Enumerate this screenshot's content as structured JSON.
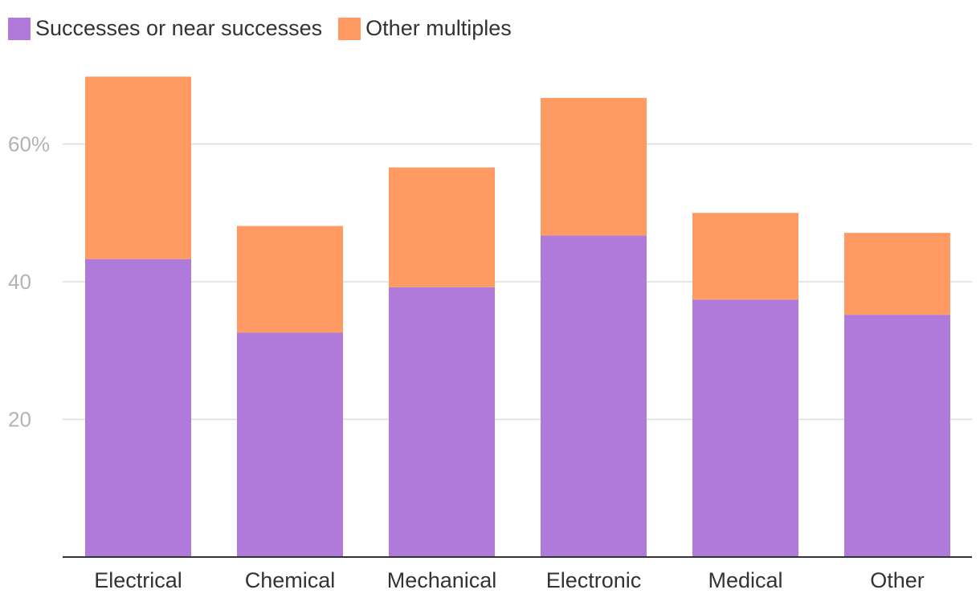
{
  "colors": {
    "successes": "#b07adb",
    "other": "#ff9a63",
    "grid": "#dddddd",
    "axis": "#333333"
  },
  "legend": {
    "items": [
      {
        "label": "Successes or near successes",
        "color": "#b07adb"
      },
      {
        "label": "Other multiples",
        "color": "#ff9a63"
      }
    ]
  },
  "chart_data": {
    "type": "bar",
    "stacked": true,
    "categories": [
      "Electrical",
      "Chemical",
      "Mechanical",
      "Electronic",
      "Medical",
      "Other"
    ],
    "series": [
      {
        "name": "Successes or near successes",
        "values": [
          43.3,
          32.6,
          39.2,
          46.7,
          37.4,
          35.2
        ]
      },
      {
        "name": "Other multiples",
        "values": [
          26.5,
          15.5,
          17.4,
          20.0,
          12.6,
          11.9
        ]
      }
    ],
    "yticks": [
      {
        "value": 20,
        "label": "20"
      },
      {
        "value": 40,
        "label": "40"
      },
      {
        "value": 60,
        "label": "60%"
      }
    ],
    "ylim": [
      0,
      80
    ],
    "grid": true,
    "legend_position": "top-left"
  }
}
